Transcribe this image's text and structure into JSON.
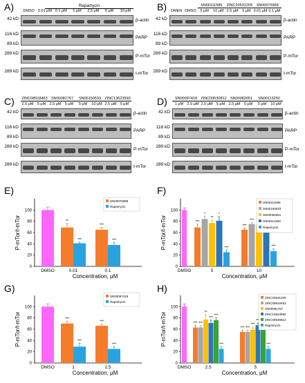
{
  "panels": {
    "A": {
      "label": "A)",
      "group_label": "Rapamycin",
      "lanes": [
        "DMSO",
        "0.01 μM",
        "0.1 μM",
        "1 μM",
        "2.5 μM",
        "5 μM",
        "10 μM"
      ],
      "rows": [
        {
          "mw": "42 kD",
          "name": "β-actin"
        },
        {
          "mw": "116 kD",
          "mw2": "89 kD",
          "name": "PARP"
        },
        {
          "mw": "289 kD",
          "name": "P-mTor"
        },
        {
          "mw": "289 kD",
          "name": "t-mTor"
        }
      ]
    },
    "B": {
      "label": "B)",
      "lanes": [
        "DMEN",
        "DMSO",
        "5 μM",
        "10 μM",
        "2.5 μM",
        "5 μM",
        "0.01 μM",
        "0.1 μM"
      ],
      "groups": [
        "SN00111586",
        "ZINC20531209",
        "SN00076968"
      ],
      "rows": [
        {
          "mw": "42 kD",
          "name": "β-actin"
        },
        {
          "mw": "116 kD",
          "mw2": "89 kD",
          "name": "PARP"
        },
        {
          "mw": "289 kD",
          "name": "P-mTor"
        },
        {
          "mw": "289 kD",
          "name": "t-mTor"
        }
      ]
    },
    "C": {
      "label": "C)",
      "groups": [
        "ZINC08918463",
        "SN00081767",
        "SN00150533",
        "ZINC13623590"
      ],
      "lanes": [
        "2.5 μM",
        "5 μM",
        "2.5 μM",
        "5 μM",
        "5 μM",
        "10 μM",
        "2.5 μM",
        "5 μM"
      ],
      "rows": [
        {
          "mw": "42 kD",
          "name": "β-actin"
        },
        {
          "mw": "116 kD",
          "mw2": "89 kD",
          "name": "PARP"
        },
        {
          "mw": "289 kD",
          "name": "P-mTor"
        },
        {
          "mw": "289 kD",
          "name": "t-mTor"
        }
      ]
    },
    "D": {
      "label": "D)",
      "groups": [
        "SN00097418",
        "ZINC09530812",
        "SN00082651",
        "SN00113250"
      ],
      "lanes": [
        "1 μM",
        "2.5 μM",
        "2.5 μM",
        "5 μM",
        "2.5 μM",
        "5 μM",
        "5 μM",
        "10 μM"
      ],
      "rows": [
        {
          "mw": "42 kD",
          "name": "β-actin"
        },
        {
          "mw": "116 kD",
          "mw2": "89 kD",
          "name": "PARP"
        },
        {
          "mw": "289 kD",
          "name": "P-mTor"
        },
        {
          "mw": "289 kD",
          "name": "t-mTor"
        }
      ]
    },
    "E": {
      "label": "E)"
    },
    "F": {
      "label": "F)"
    },
    "G": {
      "label": "G)"
    },
    "H": {
      "label": "H)"
    }
  },
  "colors": {
    "dmso": "#ff66ff",
    "orange": "#f57c2b",
    "gray": "#a6a6a6",
    "yellow": "#ffc000",
    "blue": "#2e75b6",
    "lightblue": "#29a3e0",
    "green": "#3aa335"
  },
  "chart_data": [
    {
      "id": "E",
      "type": "bar",
      "ylabel": "P-mTor/t-mTor",
      "xlabel": "Concentration, μM",
      "ylim": [
        0,
        120
      ],
      "yticks": [
        0,
        20,
        40,
        60,
        80,
        100
      ],
      "dmso": {
        "label": "DMSO",
        "value": 100,
        "err": 5
      },
      "categories": [
        "0.01",
        "0.1"
      ],
      "series": [
        {
          "name": "SN00076968",
          "color": "orange",
          "values": [
            69,
            65
          ],
          "err": [
            7,
            4
          ],
          "sig": [
            "**",
            "***"
          ]
        },
        {
          "name": "Rapamycin",
          "color": "lightblue",
          "values": [
            41,
            38
          ],
          "err": [
            2,
            4
          ],
          "sig": [
            "***",
            "***"
          ]
        }
      ]
    },
    {
      "id": "F",
      "type": "bar",
      "ylabel": "P-mTor/t-mTor",
      "xlabel": "Concentration, μM",
      "ylim": [
        0,
        120
      ],
      "yticks": [
        0,
        20,
        40,
        60,
        80,
        100
      ],
      "dmso": {
        "label": "DMSO",
        "value": 100,
        "err": 4
      },
      "categories": [
        "5",
        "10"
      ],
      "series": [
        {
          "name": "SN00111586",
          "color": "orange",
          "values": [
            69,
            65
          ],
          "err": [
            6,
            3
          ],
          "sig": [
            "***",
            "***"
          ]
        },
        {
          "name": "SN00150533",
          "color": "gray",
          "values": [
            84,
            75
          ],
          "err": [
            5,
            3
          ],
          "sig": [
            "*",
            "***"
          ]
        },
        {
          "name": "SN00082651",
          "color": "yellow",
          "values": [
            77,
            74
          ],
          "err": [
            5,
            4
          ],
          "sig": [
            "**",
            "***"
          ]
        },
        {
          "name": "SN00113250",
          "color": "blue",
          "values": [
            81,
            71
          ],
          "err": [
            7,
            4
          ],
          "sig": [
            "*",
            "***"
          ]
        },
        {
          "name": "Rapamycin",
          "color": "lightblue",
          "values": [
            25,
            27
          ],
          "err": [
            4,
            4
          ],
          "sig": [
            "***",
            "***"
          ]
        }
      ]
    },
    {
      "id": "G",
      "type": "bar",
      "ylabel": "P-mTor/t-mTor",
      "xlabel": "Concentration, μM",
      "ylim": [
        0,
        120
      ],
      "yticks": [
        0,
        20,
        40,
        60,
        80,
        100
      ],
      "dmso": {
        "label": "DMSO",
        "value": 100,
        "err": 5
      },
      "categories": [
        "1",
        "2.5"
      ],
      "series": [
        {
          "name": "SN00097418",
          "color": "orange",
          "values": [
            70,
            66
          ],
          "err": [
            4,
            3
          ],
          "sig": [
            "***",
            "***"
          ]
        },
        {
          "name": "Rapamycin",
          "color": "lightblue",
          "values": [
            29,
            25
          ],
          "err": [
            6,
            4
          ],
          "sig": [
            "***",
            "***"
          ]
        }
      ]
    },
    {
      "id": "H",
      "type": "bar",
      "ylabel": "P-mTor/t-mTor",
      "xlabel": "Concentration, μM",
      "ylim": [
        0,
        120
      ],
      "yticks": [
        0,
        20,
        40,
        60,
        80,
        100
      ],
      "dmso": {
        "label": "DMSO",
        "value": 100,
        "err": 5
      },
      "categories": [
        "2.5",
        "5"
      ],
      "series": [
        {
          "name": "ZINC20531209",
          "color": "orange",
          "values": [
            63,
            55
          ],
          "err": [
            4,
            3
          ],
          "sig": [
            "***",
            "***"
          ]
        },
        {
          "name": "ZINC08918463",
          "color": "gray",
          "values": [
            63,
            55
          ],
          "err": [
            3,
            3
          ],
          "sig": [
            "***",
            "***"
          ]
        },
        {
          "name": "SN00081767",
          "color": "yellow",
          "values": [
            77,
            59
          ],
          "err": [
            9,
            5
          ],
          "sig": [
            "**",
            "***"
          ]
        },
        {
          "name": "ZINC13623590",
          "color": "blue",
          "values": [
            71,
            67
          ],
          "err": [
            5,
            4
          ],
          "sig": [
            "***",
            "***"
          ]
        },
        {
          "name": "ZINC09530812",
          "color": "green",
          "values": [
            76,
            70
          ],
          "err": [
            4,
            3
          ],
          "sig": [
            "***",
            "***"
          ]
        },
        {
          "name": "Rapamycin",
          "color": "lightblue",
          "values": [
            25,
            25
          ],
          "err": [
            4,
            4
          ],
          "sig": [
            "***",
            "***"
          ]
        }
      ]
    }
  ]
}
